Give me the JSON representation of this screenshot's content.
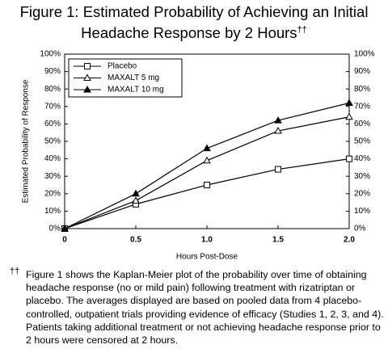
{
  "chart_data": {
    "type": "line",
    "title": "Figure 1: Estimated Probability of Achieving an Initial Headache Response by 2 Hours",
    "title_mark": "††",
    "xlabel": "Hours Post-Dose",
    "ylabel": "Estimated Probability of Response",
    "x": [
      0,
      0.5,
      1,
      1.5,
      2
    ],
    "series": [
      {
        "name": "Placebo",
        "color": "#000000",
        "marker": "square-open",
        "values": [
          0,
          14,
          25,
          34,
          40
        ]
      },
      {
        "name": "MAXALT 5 mg",
        "color": "#000000",
        "marker": "triangle-open",
        "values": [
          0,
          16,
          39,
          56,
          64
        ]
      },
      {
        "name": "MAXALT 10 mg",
        "color": "#000000",
        "marker": "triangle",
        "values": [
          0,
          20,
          46,
          62,
          72
        ]
      }
    ],
    "xlim": [
      0,
      2
    ],
    "xticks": [
      0,
      0.5,
      {
        "value": 1,
        "label": "1.0"
      },
      1.5,
      {
        "value": 2,
        "label": "2.0"
      }
    ],
    "ylim": [
      0,
      100
    ],
    "yticks": [
      {
        "value": 0,
        "label": "0%"
      },
      {
        "value": 10,
        "label": "10%"
      },
      {
        "value": 20,
        "label": "20%"
      },
      {
        "value": 30,
        "label": "30%"
      },
      {
        "value": 40,
        "label": "40%"
      },
      {
        "value": 50,
        "label": "50%"
      },
      {
        "value": 60,
        "label": "60%"
      },
      {
        "value": 70,
        "label": "70%"
      },
      {
        "value": 80,
        "label": "80%"
      },
      {
        "value": 90,
        "label": "90%"
      },
      {
        "value": 100,
        "label": "100%"
      }
    ],
    "y2lim": [
      0,
      100
    ],
    "y2ticks": [
      {
        "value": 0,
        "label": "0%"
      },
      {
        "value": 10,
        "label": "10%"
      },
      {
        "value": 20,
        "label": "20%"
      },
      {
        "value": 30,
        "label": "30%"
      },
      {
        "value": 40,
        "label": "40%"
      },
      {
        "value": 50,
        "label": "50%"
      },
      {
        "value": 60,
        "label": "60%"
      },
      {
        "value": 70,
        "label": "70%"
      },
      {
        "value": 80,
        "label": "80%"
      },
      {
        "value": 90,
        "label": "90%"
      },
      {
        "value": 100,
        "label": "100%"
      }
    ],
    "grid": false,
    "legend": "upper left",
    "footnote_mark": "††",
    "footnote": "Figure 1 shows the Kaplan-Meier plot of the probability over time of obtaining headache response (no or mild pain) following treatment with rizatriptan or placebo. The averages displayed are based on pooled data from 4 placebo-controlled, outpatient trials providing evidence of efficacy (Studies 1, 2, 3, and 4). Patients taking additional treatment or not achieving headache response prior to 2 hours were censored at 2 hours."
  }
}
